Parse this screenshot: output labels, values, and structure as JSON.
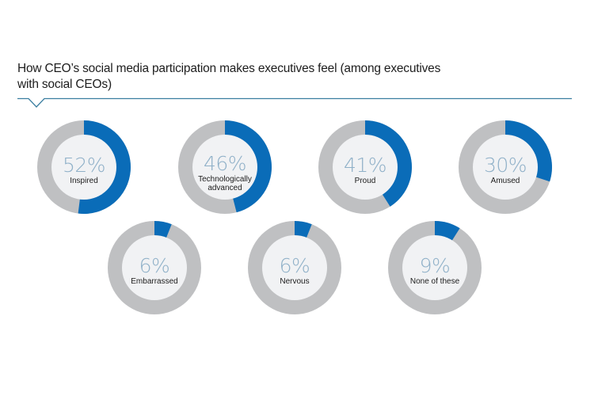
{
  "colors": {
    "accent": "#0a6cb8",
    "track": "#bfc0c2",
    "inner": "#f1f2f4",
    "percent_text": "#8fb0c8",
    "label_text": "#1d1d1d",
    "rule": "#3a7ea0"
  },
  "header": {
    "title_line1": "How CEO’s social media participation makes executives feel  (among executives",
    "title_line2": "with social CEOs)"
  },
  "chart_data": {
    "type": "pie",
    "subtype": "donut-set",
    "title": "How CEO’s social media participation makes executives feel (among executives with social CEOs)",
    "unit": "%",
    "categories": [
      "Inspired",
      "Technologically advanced",
      "Proud",
      "Amused",
      "Embarrassed",
      "Nervous",
      "None of these"
    ],
    "values": [
      52,
      46,
      41,
      30,
      6,
      6,
      9
    ],
    "items": [
      {
        "label": "Inspired",
        "label_lines": [
          "Inspired"
        ],
        "value": 52,
        "display": "52%"
      },
      {
        "label": "Technologically advanced",
        "label_lines": [
          "Technologically",
          "advanced"
        ],
        "value": 46,
        "display": "46%"
      },
      {
        "label": "Proud",
        "label_lines": [
          "Proud"
        ],
        "value": 41,
        "display": "41%"
      },
      {
        "label": "Amused",
        "label_lines": [
          "Amused"
        ],
        "value": 30,
        "display": "30%"
      },
      {
        "label": "Embarrassed",
        "label_lines": [
          "Embarrassed"
        ],
        "value": 6,
        "display": "6%"
      },
      {
        "label": "Nervous",
        "label_lines": [
          "Nervous"
        ],
        "value": 6,
        "display": "6%"
      },
      {
        "label": "None of these",
        "label_lines": [
          "None of these"
        ],
        "value": 9,
        "display": "9%"
      }
    ],
    "max": 100,
    "legend": "none"
  }
}
